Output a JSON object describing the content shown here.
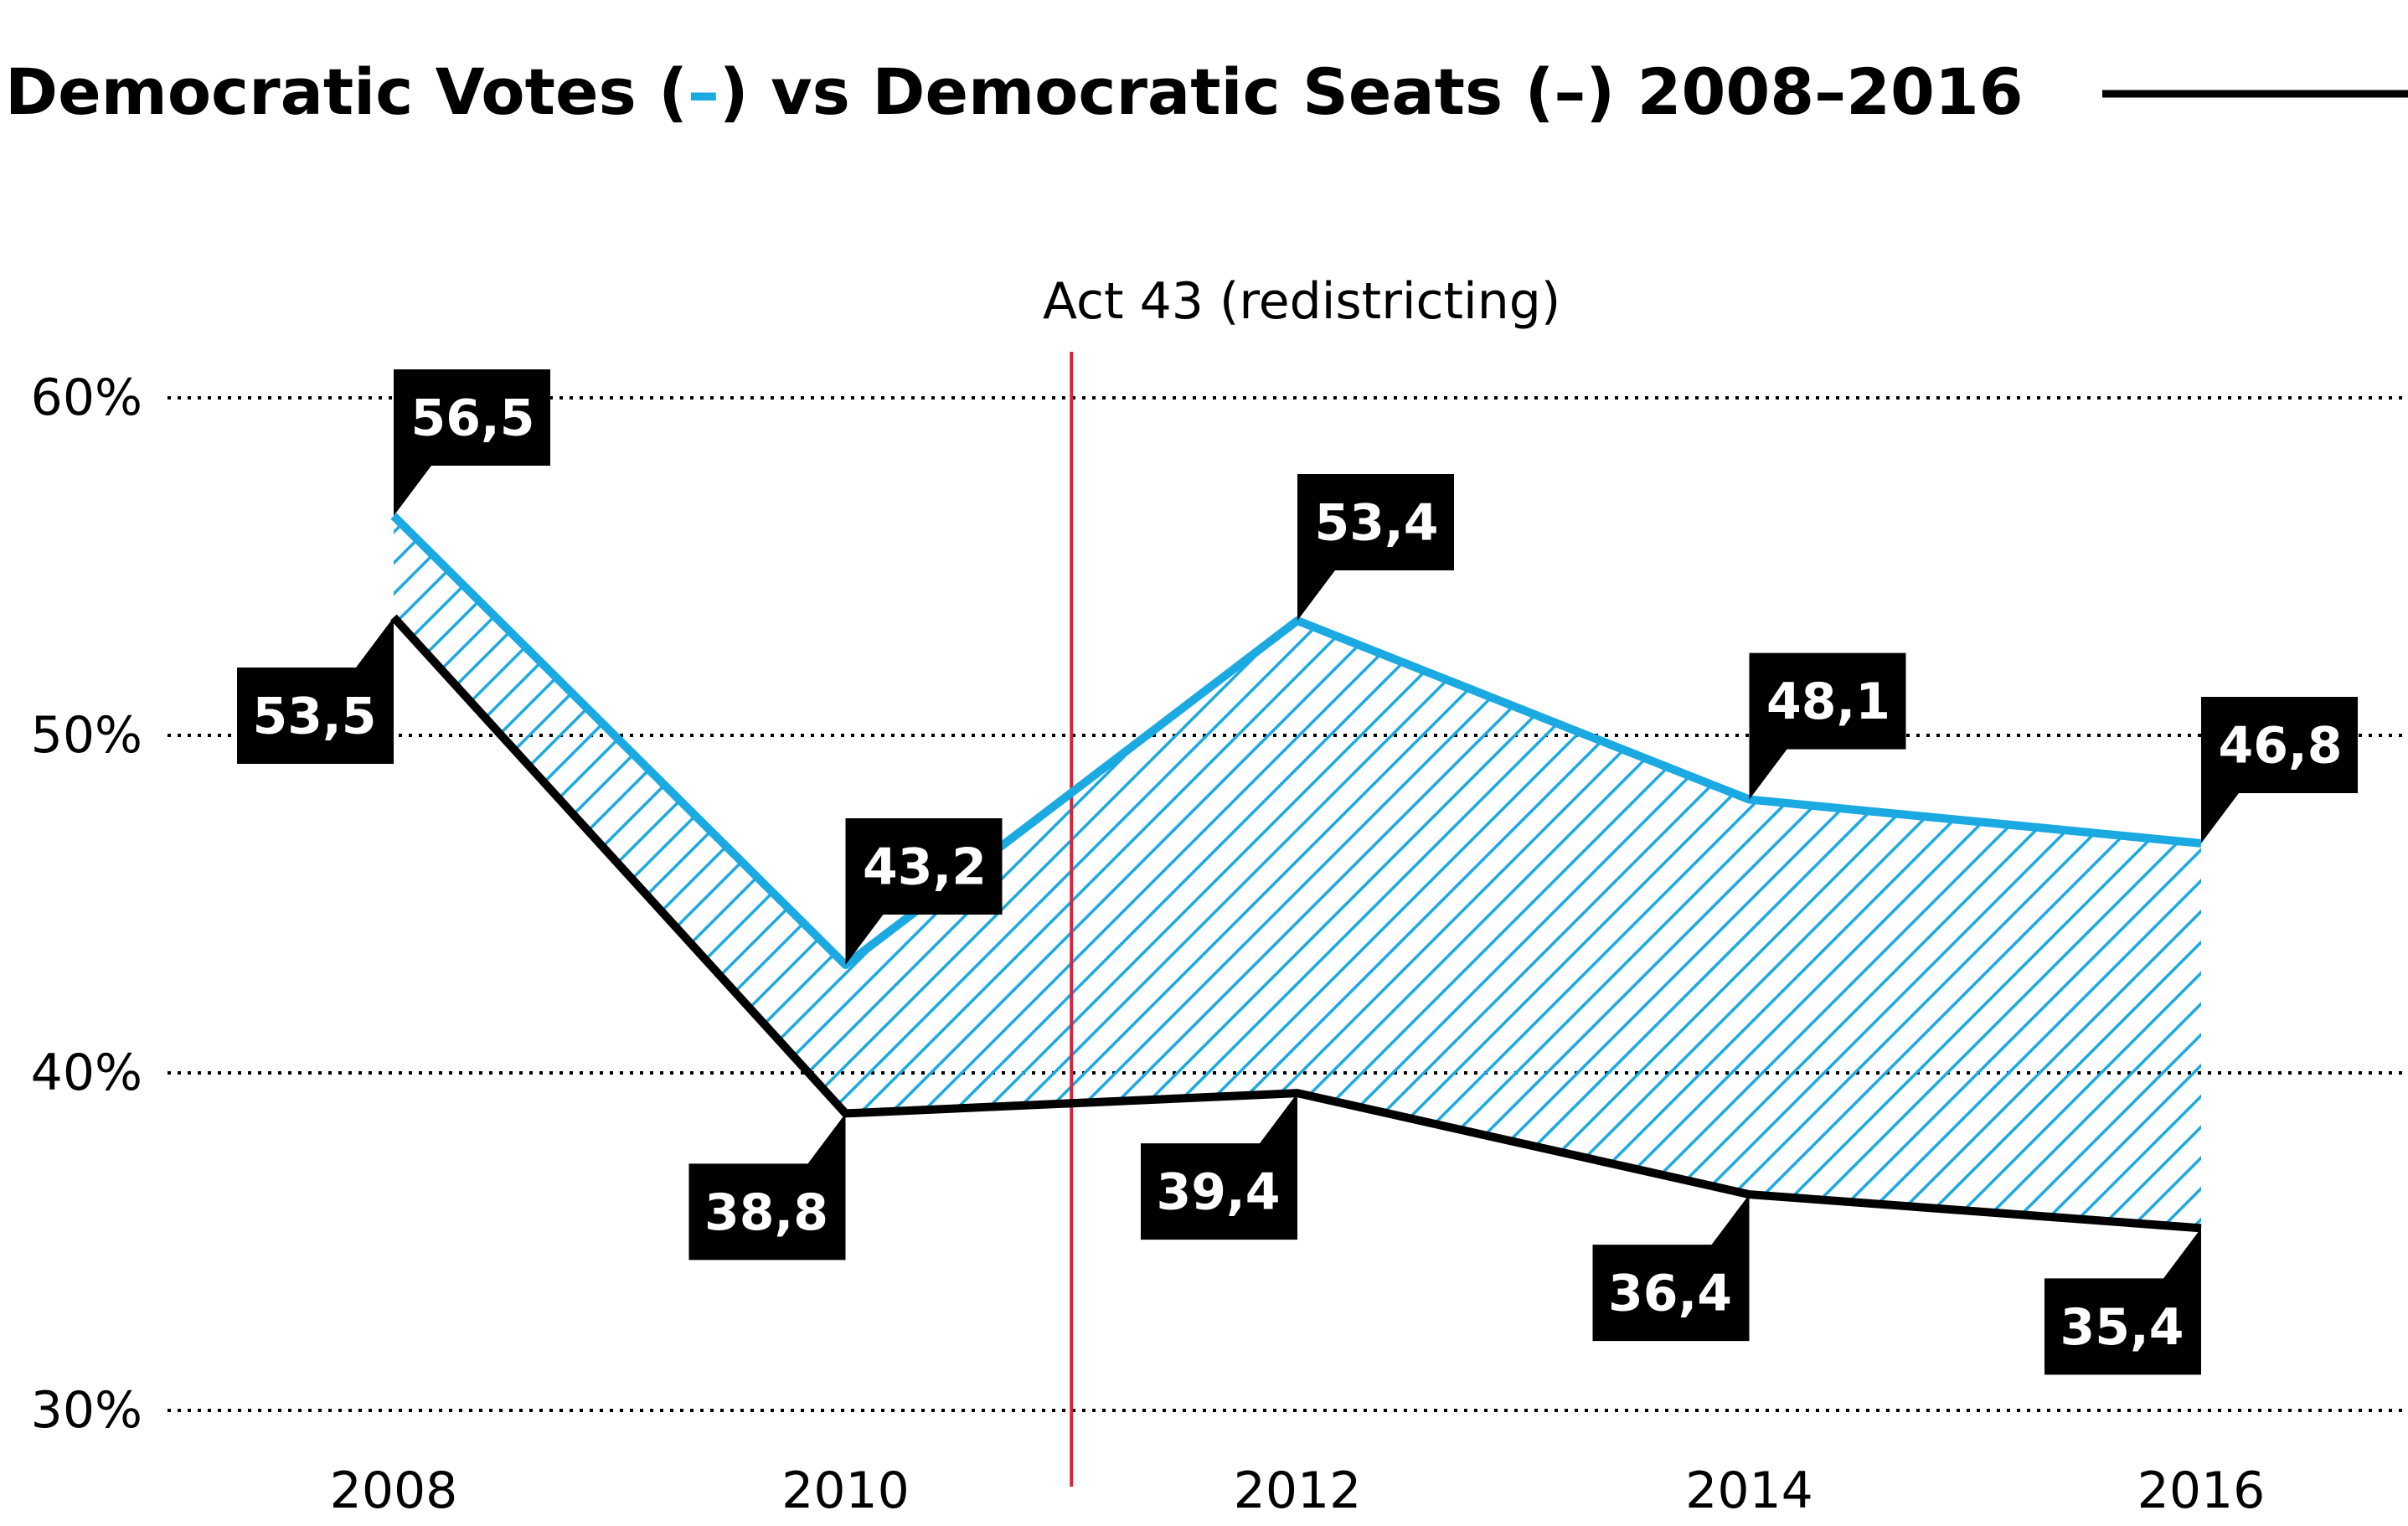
{
  "title": {
    "part1": "Democratic Votes (",
    "votes_marker": "–",
    "part2": ") vs Democratic Seats (",
    "seats_marker": "–",
    "part3": ") 2008–2016"
  },
  "colors": {
    "votes": "#1ba9e2",
    "seats": "#000000",
    "event_line": "#e0203a",
    "callout_bg": "#000000",
    "callout_text": "#ffffff"
  },
  "chart_data": {
    "type": "line",
    "x": [
      2008,
      2010,
      2012,
      2014,
      2016
    ],
    "series": [
      {
        "name": "Democratic Votes",
        "values": [
          56.5,
          43.2,
          53.4,
          48.1,
          46.8
        ],
        "labels": [
          "56,5",
          "43,2",
          "53,4",
          "48,1",
          "46,8"
        ]
      },
      {
        "name": "Democratic Seats",
        "values": [
          53.5,
          38.8,
          39.4,
          36.4,
          35.4
        ],
        "labels": [
          "53,5",
          "38,8",
          "39,4",
          "36,4",
          "35,4"
        ]
      }
    ],
    "ylim": [
      30,
      60
    ],
    "yticks": [
      60,
      50,
      40,
      30
    ],
    "ytick_labels": [
      "60%",
      "50%",
      "40%",
      "30%"
    ],
    "xtick_labels": [
      "2008",
      "2010",
      "2012",
      "2014",
      "2016"
    ],
    "shaded_gap_between_series": true,
    "grid": "horizontal dotted",
    "annotations": [
      {
        "x": 2011,
        "text": "Act 43 (redistricting)"
      }
    ]
  }
}
